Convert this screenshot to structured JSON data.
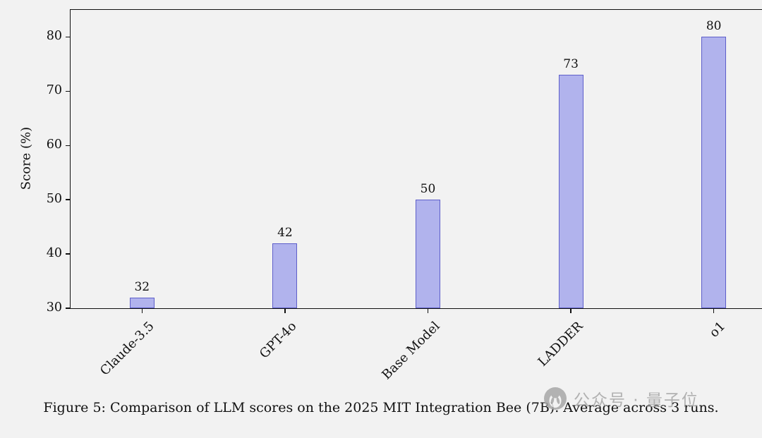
{
  "background": "#f2f2f2",
  "chart_data": {
    "type": "bar",
    "title": "",
    "categories": [
      "Claude-3.5",
      "GPT-4o",
      "Base Model",
      "LADDER",
      "o1"
    ],
    "values": [
      32,
      42,
      50,
      73,
      80
    ],
    "value_labels": [
      "32",
      "42",
      "50",
      "73",
      "80"
    ],
    "xlabel": "",
    "ylabel": "Score (%)",
    "ylim": [
      30,
      85
    ],
    "yticks": [
      30,
      40,
      50,
      60,
      70,
      80
    ],
    "grid": false,
    "legend": "none",
    "bar_fill": "#b1b3ed",
    "bar_border": "#5e5fca",
    "x_tick_rotation_deg": 45
  },
  "caption": "Figure 5: Comparison of LLM scores on the 2025 MIT Integration Bee (7B). Average across 3 runs.",
  "watermark": {
    "text": "公众号 · 量子位",
    "color": "#a6a6a6"
  }
}
